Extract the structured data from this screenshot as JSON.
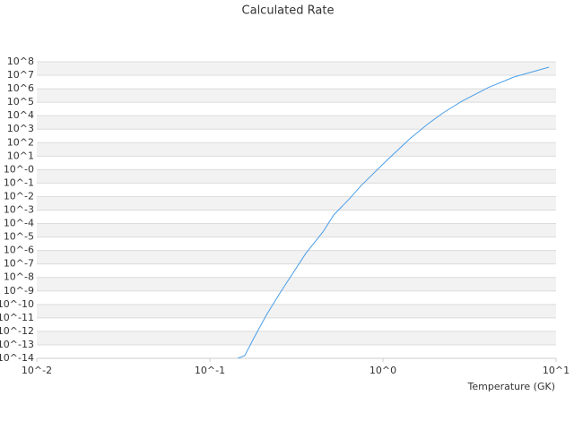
{
  "chart_data": {
    "type": "line",
    "title": "Calculated Rate",
    "x_label": "Temperature (GK)",
    "x": [
      0.145,
      0.159,
      0.18,
      0.212,
      0.254,
      0.358,
      0.45,
      0.52,
      0.64,
      0.75,
      1.04,
      1.43,
      1.8,
      2.22,
      2.86,
      4.04,
      5.7,
      9.1
    ],
    "series": [
      {
        "color": "#4a9ee8",
        "values": [
          1e-14,
          1.6e-14,
          3.4e-13,
          1.6e-11,
          7e-10,
          6e-07,
          2.4e-05,
          0.00044,
          0.0068,
          0.068,
          4.2,
          195,
          2240,
          16000,
          120000,
          1200000,
          7400000,
          40000000
        ]
      }
    ],
    "xscale": "log",
    "yscale": "log",
    "xlim": [
      0.01,
      10
    ],
    "xticks": [
      {
        "value": 0.01,
        "label": "10^-2"
      },
      {
        "value": 0.1,
        "label": "10^-1"
      },
      {
        "value": 1,
        "label": "10^0"
      },
      {
        "value": 10,
        "label": "10^1"
      }
    ],
    "ylim": [
      1e-14,
      100000000.0
    ],
    "yticks": [
      {
        "value": 100000000.0,
        "label": "10^8"
      },
      {
        "value": 10000000.0,
        "label": "10^7"
      },
      {
        "value": 1000000.0,
        "label": "10^6"
      },
      {
        "value": 100000.0,
        "label": "10^5"
      },
      {
        "value": 10000.0,
        "label": "10^4"
      },
      {
        "value": 1000.0,
        "label": "10^3"
      },
      {
        "value": 100.0,
        "label": "10^2"
      },
      {
        "value": 10.0,
        "label": "10^1"
      },
      {
        "value": 1,
        "label": "10^-0"
      },
      {
        "value": 0.1,
        "label": "10^-1"
      },
      {
        "value": 0.01,
        "label": "10^-2"
      },
      {
        "value": 0.001,
        "label": "10^-3"
      },
      {
        "value": 0.0001,
        "label": "10^-4"
      },
      {
        "value": 1e-05,
        "label": "10^-5"
      },
      {
        "value": 1e-06,
        "label": "10^-6"
      },
      {
        "value": 1e-07,
        "label": "10^-7"
      },
      {
        "value": 1e-08,
        "label": "10^-8"
      },
      {
        "value": 1e-09,
        "label": "10^-9"
      },
      {
        "value": 1e-10,
        "label": "10^-10"
      },
      {
        "value": 1e-11,
        "label": "10^-11"
      },
      {
        "value": 1e-12,
        "label": "10^-12"
      },
      {
        "value": 1e-13,
        "label": "10^-13"
      },
      {
        "value": 1e-14,
        "label": "10^-14"
      }
    ],
    "grid": true
  }
}
